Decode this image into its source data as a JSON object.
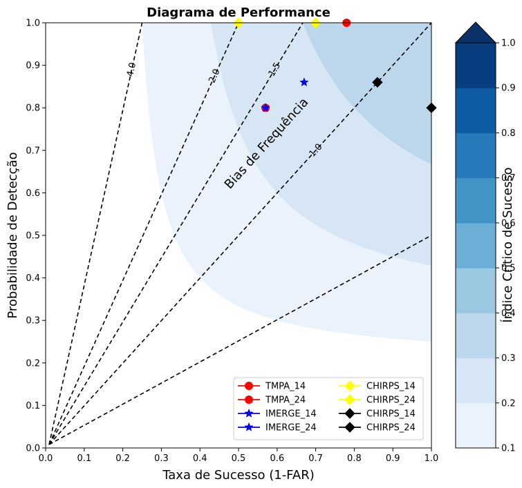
{
  "chart_data": {
    "type": "performance_diagram",
    "title": "Diagrama de Performance",
    "xlabel": "Taxa de Sucesso (1-FAR)",
    "ylabel": "Probabilidade de Detecção",
    "xlim": [
      0,
      1
    ],
    "ylim": [
      0,
      1
    ],
    "x_ticks": [
      "0.0",
      "0.1",
      "0.2",
      "0.3",
      "0.4",
      "0.5",
      "0.6",
      "0.7",
      "0.8",
      "0.9",
      "1.0"
    ],
    "y_ticks": [
      "0.0",
      "0.1",
      "0.2",
      "0.3",
      "0.4",
      "0.5",
      "0.6",
      "0.7",
      "0.8",
      "0.9",
      "1.0"
    ],
    "csi_contours": {
      "levels": [
        0.1,
        0.2,
        0.3,
        0.4,
        0.5,
        0.6,
        0.7,
        0.8,
        0.9,
        1.0
      ],
      "colors": [
        "#ffffff",
        "#eaf2fb",
        "#d6e6f4",
        "#bcd7eb",
        "#9ac8e0",
        "#6baed6",
        "#4493c7",
        "#2879b9",
        "#0d5ba3",
        "#083e80"
      ],
      "extend_color": "#0a3268"
    },
    "colorbar": {
      "label": "Índice Crítico de Sucesso",
      "ticks": [
        "0.1",
        "0.2",
        "0.3",
        "0.4",
        "0.5",
        "0.6",
        "0.7",
        "0.8",
        "0.9",
        "1.0"
      ]
    },
    "bias_lines": [
      {
        "bias": 0.5,
        "label": ""
      },
      {
        "bias": 1.0,
        "label": "1.0"
      },
      {
        "bias": 1.5,
        "label": "1.5"
      },
      {
        "bias": 2.0,
        "label": "2.0"
      },
      {
        "bias": 4.0,
        "label": "4.0"
      }
    ],
    "bias_title": "Bias de Frequência",
    "series": [
      {
        "name": "TMPA_14",
        "marker": "circle",
        "color": "#ff0000",
        "x": [
          0.57
        ],
        "y": [
          0.8
        ]
      },
      {
        "name": "TMPA_24",
        "marker": "circle",
        "color": "#ff0000",
        "x": [
          0.78
        ],
        "y": [
          1.0
        ]
      },
      {
        "name": "IMERGE_14",
        "marker": "star",
        "color": "#0000ff",
        "x": [
          0.57
        ],
        "y": [
          0.8
        ]
      },
      {
        "name": "IMERGE_24",
        "marker": "star",
        "color": "#0000ff",
        "x": [
          0.67
        ],
        "y": [
          0.86
        ]
      },
      {
        "name": "CHIRPS_14",
        "marker": "diamond",
        "color": "#ffff00",
        "x": [
          0.5
        ],
        "y": [
          1.0
        ]
      },
      {
        "name": "CHIRPS_24",
        "marker": "diamond",
        "color": "#ffff00",
        "x": [
          0.7
        ],
        "y": [
          1.0
        ]
      },
      {
        "name": "CHIRPS_14",
        "marker": "diamond",
        "color": "#000000",
        "x": [
          1.0
        ],
        "y": [
          0.8
        ]
      },
      {
        "name": "CHIRPS_24",
        "marker": "diamond",
        "color": "#000000",
        "x": [
          0.86
        ],
        "y": [
          0.86
        ]
      }
    ],
    "legend_placement": "lower-right",
    "legend_columns": 2
  }
}
